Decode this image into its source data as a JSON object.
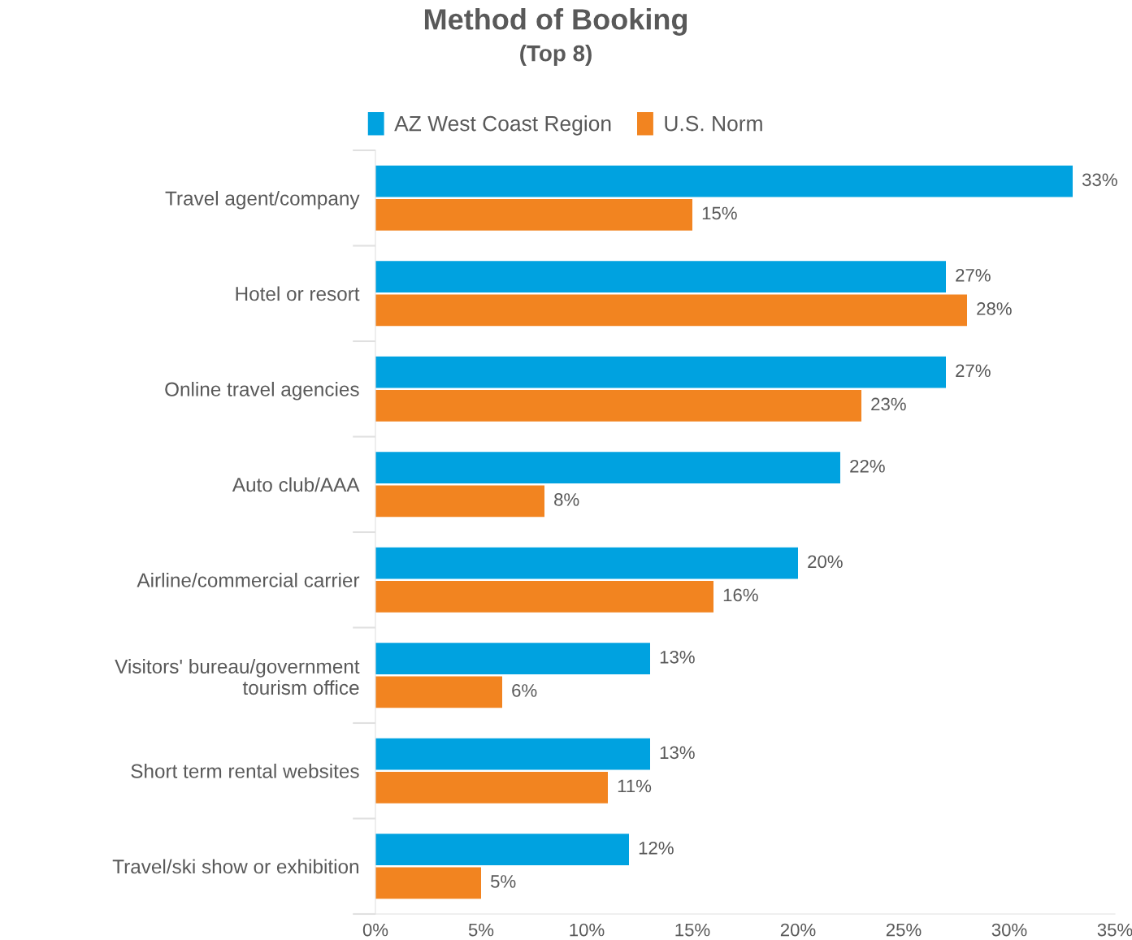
{
  "chart_data": {
    "type": "bar",
    "orientation": "horizontal",
    "title": "Method of Booking",
    "subtitle": "(Top 8)",
    "categories": [
      "Travel agent/company",
      "Hotel or resort",
      "Online travel agencies",
      "Auto club/AAA",
      "Airline/commercial carrier",
      "Visitors' bureau/government tourism office",
      "Short term rental websites",
      "Travel/ski show or exhibition"
    ],
    "series": [
      {
        "name": "AZ West Coast Region",
        "color": "#00a2e0",
        "values": [
          33,
          27,
          27,
          22,
          20,
          13,
          13,
          12
        ],
        "value_labels": [
          "33%",
          "27%",
          "27%",
          "22%",
          "20%",
          "13%",
          "13%",
          "12%"
        ]
      },
      {
        "name": "U.S. Norm",
        "color": "#f28420",
        "values": [
          15,
          28,
          23,
          8,
          16,
          6,
          11,
          5
        ],
        "value_labels": [
          "15%",
          "28%",
          "23%",
          "8%",
          "16%",
          "6%",
          "11%",
          "5%"
        ]
      }
    ],
    "xlim": [
      0,
      35
    ],
    "xticks": [
      {
        "value": 0,
        "label": "0%"
      },
      {
        "value": 5,
        "label": "5%"
      },
      {
        "value": 10,
        "label": "10%"
      },
      {
        "value": 15,
        "label": "15%"
      },
      {
        "value": 20,
        "label": "20%"
      },
      {
        "value": 25,
        "label": "25%"
      },
      {
        "value": 30,
        "label": "30%"
      },
      {
        "value": 35,
        "label": "35%"
      }
    ],
    "legend": "top",
    "grid": false
  }
}
